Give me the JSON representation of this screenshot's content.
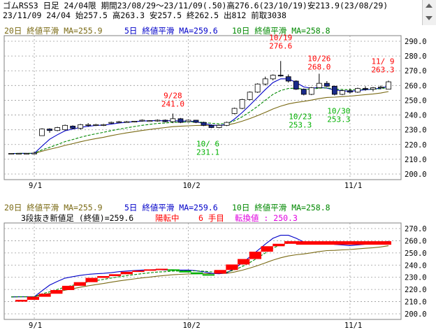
{
  "header": {
    "line1": "ゴムRSS3 日足 24/04限 期間23/08/29～23/11/09(.50)高276.6(23/10/19)安213.9(23/08/29)",
    "line2": "23/11/09 24/04 始257.5 高263.3 安257.5 終262.5 出812 前取3038"
  },
  "colors": {
    "ma20": "#7a6a14",
    "ma5": "#0000c8",
    "ma10": "#008800",
    "candle_up_fill": "#ffffff",
    "candle_dn_fill": "#1a2a8a",
    "red": "#ff0000",
    "green": "#00b000",
    "pink": "#e000e0",
    "grid": "#9a9a9a"
  },
  "top_panel": {
    "legend": {
      "ma20": "20日 終値平滑 MA=255.9",
      "ma5": "5日 終値平滑 MA=259.6",
      "ma10": "10日 終値平滑 MA=258.8"
    },
    "yticks": [
      "290.0",
      "280.0",
      "270.0",
      "260.0",
      "250.0",
      "240.0",
      "230.0",
      "220.0",
      "210.0",
      "200.0"
    ],
    "xticks": [
      "9/1",
      "10/2",
      "11/1"
    ],
    "annotations": [
      {
        "date": "10/19",
        "value": "276.6",
        "color": "red"
      },
      {
        "date": "10/26",
        "value": "268.0",
        "color": "red"
      },
      {
        "date": "11/ 9",
        "value": "263.3",
        "color": "red"
      },
      {
        "date": "9/28",
        "value": "241.0",
        "color": "red"
      },
      {
        "date": "10/23",
        "value": "253.3",
        "color": "green"
      },
      {
        "date": "10/30",
        "value": "253.3",
        "color": "green"
      },
      {
        "date": "10/ 6",
        "value": "231.1",
        "color": "green"
      }
    ]
  },
  "bottom_panel": {
    "legend": {
      "ma20": "20日 終値平滑 MA=255.9",
      "ma5": "5日 終値平滑 MA=259.6",
      "ma10": "10日 終値平滑 MA=258.8"
    },
    "info": {
      "title": "3段抜き新値足 (終値)=259.6",
      "state": "陽転中",
      "count": "6 手目",
      "reversal": "転換値 : 250.3"
    },
    "yticks": [
      "270.0",
      "260.0",
      "250.0",
      "240.0",
      "230.0",
      "220.0",
      "210.0",
      "200.0"
    ],
    "xticks": [
      "9/1",
      "10/2",
      "11/1"
    ]
  },
  "chart_data": [
    {
      "type": "candlestick",
      "title": "ゴムRSS3 日足 24/04限",
      "ylim": [
        200,
        290
      ],
      "x": [
        "8/29",
        "8/30",
        "8/31",
        "9/1",
        "9/4",
        "9/5",
        "9/6",
        "9/7",
        "9/8",
        "9/11",
        "9/12",
        "9/13",
        "9/14",
        "9/15",
        "9/19",
        "9/20",
        "9/21",
        "9/22",
        "9/25",
        "9/26",
        "9/27",
        "9/28",
        "9/29",
        "10/2",
        "10/3",
        "10/4",
        "10/5",
        "10/6",
        "10/10",
        "10/11",
        "10/12",
        "10/13",
        "10/16",
        "10/17",
        "10/18",
        "10/19",
        "10/20",
        "10/23",
        "10/24",
        "10/25",
        "10/26",
        "10/27",
        "10/30",
        "10/31",
        "11/1",
        "11/2",
        "11/6",
        "11/7",
        "11/8",
        "11/9"
      ],
      "ohlc": [
        [
          213.9,
          214.0,
          213.9,
          214.0
        ],
        [
          214.0,
          214.0,
          213.9,
          214.0
        ],
        [
          214.0,
          214.0,
          213.9,
          214.0
        ],
        [
          214.0,
          215.0,
          213.9,
          214.2
        ],
        [
          226.0,
          231.0,
          226.0,
          230.5
        ],
        [
          230.5,
          231.0,
          228.0,
          229.5
        ],
        [
          229.5,
          232.0,
          229.0,
          231.5
        ],
        [
          230.0,
          233.5,
          229.5,
          233.0
        ],
        [
          232.5,
          233.0,
          230.5,
          231.0
        ],
        [
          231.0,
          234.0,
          230.0,
          233.5
        ],
        [
          233.5,
          234.5,
          232.0,
          233.5
        ],
        [
          233.5,
          234.0,
          232.5,
          233.5
        ],
        [
          233.5,
          234.0,
          232.5,
          233.5
        ],
        [
          234.5,
          235.5,
          234.0,
          235.0
        ],
        [
          235.0,
          236.0,
          234.5,
          235.5
        ],
        [
          235.5,
          236.0,
          235.0,
          235.5
        ],
        [
          235.5,
          236.0,
          235.0,
          235.8
        ],
        [
          236.0,
          237.0,
          235.5,
          236.5
        ],
        [
          236.0,
          236.5,
          235.5,
          236.2
        ],
        [
          236.0,
          237.0,
          235.5,
          236.5
        ],
        [
          236.5,
          237.0,
          235.0,
          235.5
        ],
        [
          235.5,
          241.0,
          234.5,
          237.5
        ],
        [
          237.5,
          238.0,
          234.5,
          235.0
        ],
        [
          235.5,
          237.0,
          235.0,
          236.5
        ],
        [
          236.5,
          236.5,
          234.5,
          235.0
        ],
        [
          235.0,
          235.5,
          232.5,
          233.0
        ],
        [
          233.0,
          233.5,
          231.1,
          231.5
        ],
        [
          231.5,
          233.5,
          231.1,
          233.0
        ],
        [
          233.0,
          235.5,
          232.5,
          235.0
        ],
        [
          241.0,
          245.0,
          240.5,
          244.5
        ],
        [
          244.5,
          251.0,
          244.0,
          250.5
        ],
        [
          250.5,
          256.0,
          250.0,
          255.5
        ],
        [
          255.5,
          261.5,
          255.0,
          261.0
        ],
        [
          261.0,
          266.0,
          260.0,
          264.5
        ],
        [
          264.5,
          267.5,
          263.5,
          267.0
        ],
        [
          267.0,
          276.6,
          266.0,
          266.5
        ],
        [
          266.0,
          267.5,
          262.0,
          263.0
        ],
        [
          263.0,
          263.5,
          257.0,
          257.5
        ],
        [
          257.5,
          258.0,
          253.3,
          254.0
        ],
        [
          254.0,
          259.0,
          253.5,
          258.5
        ],
        [
          258.5,
          268.0,
          258.0,
          261.5
        ],
        [
          261.5,
          263.0,
          259.0,
          259.5
        ],
        [
          259.5,
          260.0,
          253.3,
          254.0
        ],
        [
          254.0,
          257.0,
          253.5,
          256.5
        ],
        [
          256.5,
          258.0,
          254.5,
          255.5
        ],
        [
          255.5,
          258.5,
          255.0,
          258.0
        ],
        [
          258.0,
          259.5,
          256.5,
          257.5
        ],
        [
          257.5,
          259.0,
          256.0,
          258.5
        ],
        [
          258.5,
          260.0,
          257.5,
          259.0
        ],
        [
          257.5,
          263.3,
          257.5,
          262.5
        ]
      ],
      "series": [
        {
          "name": "20日 終値平滑",
          "values": [
            213.9,
            214.0,
            214.0,
            214.0,
            215.5,
            216.8,
            218.0,
            219.4,
            220.6,
            221.9,
            223.0,
            224.0,
            224.9,
            226.0,
            227.0,
            227.9,
            228.7,
            229.5,
            230.2,
            230.9,
            231.5,
            232.1,
            232.4,
            232.7,
            232.9,
            233.0,
            233.0,
            233.0,
            233.2,
            234.3,
            235.8,
            237.6,
            239.6,
            241.8,
            244.1,
            246.0,
            247.5,
            248.5,
            249.2,
            250.1,
            251.1,
            251.9,
            252.1,
            252.5,
            252.8,
            253.3,
            253.8,
            254.3,
            254.9,
            255.9
          ]
        },
        {
          "name": "5日 終値平滑",
          "values": [
            213.9,
            214.0,
            214.0,
            214.0,
            218.9,
            223.6,
            226.6,
            229.3,
            230.5,
            231.6,
            232.4,
            232.9,
            233.2,
            233.8,
            234.6,
            235.1,
            235.5,
            235.9,
            236.1,
            236.3,
            236.0,
            236.2,
            235.9,
            235.9,
            235.4,
            234.4,
            233.2,
            232.9,
            233.6,
            237.3,
            241.7,
            246.7,
            252.0,
            257.2,
            262.0,
            264.5,
            264.5,
            262.0,
            259.0,
            258.1,
            258.7,
            258.2,
            257.0,
            256.5,
            256.0,
            256.6,
            257.1,
            257.5,
            258.2,
            259.6
          ]
        },
        {
          "name": "10日 終値平滑",
          "values": [
            213.9,
            214.0,
            214.0,
            214.0,
            216.4,
            218.1,
            220.0,
            222.0,
            223.4,
            224.9,
            226.2,
            227.3,
            228.3,
            229.4,
            230.4,
            231.3,
            232.2,
            233.0,
            233.7,
            234.3,
            234.6,
            235.1,
            235.1,
            235.3,
            235.3,
            235.0,
            234.4,
            234.0,
            234.2,
            236.1,
            238.8,
            242.1,
            245.9,
            250.0,
            254.0,
            256.6,
            258.0,
            258.2,
            257.4,
            257.5,
            258.2,
            258.4,
            257.6,
            257.3,
            257.1,
            257.3,
            257.4,
            257.5,
            257.8,
            258.8
          ]
        }
      ]
    },
    {
      "type": "new_price_bars",
      "title": "3段抜き新値足 (終値)=259.6",
      "ylim": [
        200,
        270
      ],
      "bars": [
        {
          "low": 210.0,
          "high": 211.5,
          "color": "red"
        },
        {
          "low": 211.5,
          "high": 214.0,
          "color": "red"
        },
        {
          "low": 214.0,
          "high": 216.5,
          "color": "red"
        },
        {
          "low": 216.5,
          "high": 219.5,
          "color": "red"
        },
        {
          "low": 219.5,
          "high": 223.0,
          "color": "red"
        },
        {
          "low": 223.0,
          "high": 226.0,
          "color": "red"
        },
        {
          "low": 226.0,
          "high": 229.5,
          "color": "red"
        },
        {
          "low": 229.5,
          "high": 231.0,
          "color": "red"
        },
        {
          "low": 231.0,
          "high": 232.5,
          "color": "red"
        },
        {
          "low": 232.5,
          "high": 234.5,
          "color": "red"
        },
        {
          "low": 234.5,
          "high": 235.5,
          "color": "red"
        },
        {
          "low": 235.5,
          "high": 236.5,
          "color": "red"
        },
        {
          "low": 236.5,
          "high": 237.0,
          "color": "red"
        },
        {
          "low": 235.5,
          "high": 236.5,
          "color": "green"
        },
        {
          "low": 234.0,
          "high": 235.5,
          "color": "green"
        },
        {
          "low": 232.5,
          "high": 234.0,
          "color": "green"
        },
        {
          "low": 231.5,
          "high": 232.5,
          "color": "green"
        },
        {
          "low": 233.0,
          "high": 236.0,
          "color": "red"
        },
        {
          "low": 236.0,
          "high": 240.5,
          "color": "red"
        },
        {
          "low": 240.5,
          "high": 245.0,
          "color": "red"
        },
        {
          "low": 245.0,
          "high": 251.0,
          "color": "red"
        },
        {
          "low": 251.0,
          "high": 255.5,
          "color": "red"
        },
        {
          "low": 255.5,
          "high": 257.5,
          "color": "red"
        },
        {
          "low": 257.5,
          "high": 259.6,
          "color": "red"
        }
      ],
      "series": [
        {
          "name": "20日 終値平滑",
          "values": [
            213.9,
            214.0,
            214.0,
            214.0,
            215.5,
            216.8,
            218.0,
            219.4,
            220.6,
            221.9,
            223.0,
            224.0,
            224.9,
            226.0,
            227.0,
            227.9,
            228.7,
            229.5,
            230.2,
            230.9,
            231.5,
            232.1,
            232.4,
            232.7,
            232.9,
            233.0,
            233.0,
            233.0,
            233.2,
            234.3,
            235.8,
            237.6,
            239.6,
            241.8,
            244.1,
            246.0,
            247.5,
            248.5,
            249.2,
            250.1,
            251.1,
            251.9,
            252.1,
            252.5,
            252.8,
            253.3,
            253.8,
            254.3,
            254.9,
            255.9
          ]
        },
        {
          "name": "5日 終値平滑",
          "values": [
            213.9,
            214.0,
            214.0,
            214.0,
            218.9,
            223.6,
            226.6,
            229.3,
            230.5,
            231.6,
            232.4,
            232.9,
            233.2,
            233.8,
            234.6,
            235.1,
            235.5,
            235.9,
            236.1,
            236.3,
            236.0,
            236.2,
            235.9,
            235.9,
            235.4,
            234.4,
            233.2,
            232.9,
            233.6,
            237.3,
            241.7,
            246.7,
            252.0,
            257.2,
            262.0,
            264.5,
            264.5,
            262.0,
            259.0,
            258.1,
            258.7,
            258.2,
            257.0,
            256.5,
            256.0,
            256.6,
            257.1,
            257.5,
            258.2,
            259.6
          ]
        },
        {
          "name": "10日 終値平滑",
          "values": [
            213.9,
            214.0,
            214.0,
            214.0,
            216.4,
            218.1,
            220.0,
            222.0,
            223.4,
            224.9,
            226.2,
            227.3,
            228.3,
            229.4,
            230.4,
            231.3,
            232.2,
            233.0,
            233.7,
            234.3,
            234.6,
            235.1,
            235.1,
            235.3,
            235.3,
            235.0,
            234.4,
            234.0,
            234.2,
            236.1,
            238.8,
            242.1,
            245.9,
            250.0,
            254.0,
            256.6,
            258.0,
            258.2,
            257.4,
            257.5,
            258.2,
            258.4,
            257.6,
            257.3,
            257.1,
            257.3,
            257.4,
            257.5,
            257.8,
            258.8
          ]
        }
      ]
    }
  ]
}
